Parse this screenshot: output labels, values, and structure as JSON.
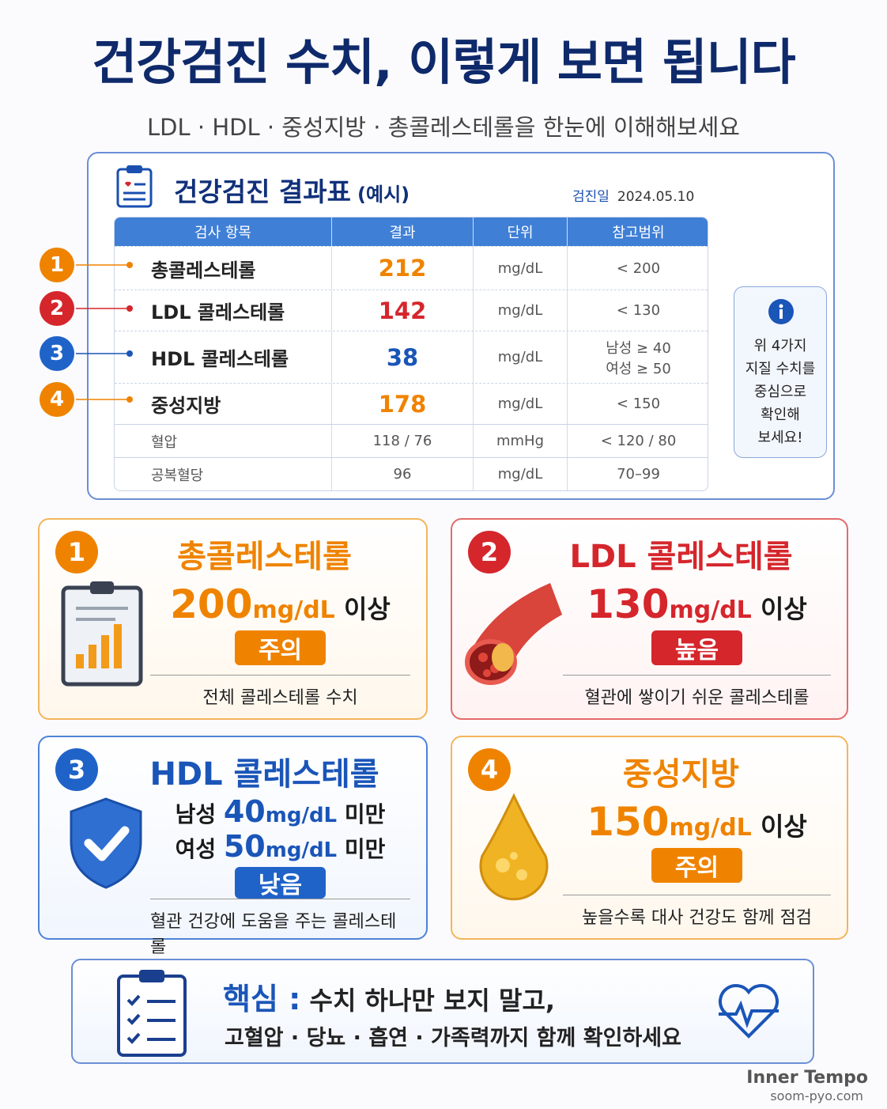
{
  "header": {
    "title": "건강검진 수치, 이렇게 보면 됩니다",
    "subtitle": "LDL · HDL · 중성지방 · 총콜레스테롤을 한눈에 이해해보세요"
  },
  "report": {
    "title": "건강검진 결과표",
    "title_note": "(예시)",
    "date_label": "검진일",
    "date": "2024.05.10",
    "table": {
      "headers": [
        "검사 항목",
        "결과",
        "단위",
        "참고범위"
      ],
      "markers": [
        "1",
        "2",
        "3",
        "4"
      ],
      "rows": [
        [
          "총콜레스테롤",
          "212",
          "mg/dL",
          "< 200"
        ],
        [
          "LDL 콜레스테롤",
          "142",
          "mg/dL",
          "< 130"
        ],
        [
          "HDL 콜레스테롤",
          "38",
          "mg/dL",
          [
            "남성 ≥ 40",
            "여성 ≥ 50"
          ]
        ],
        [
          "중성지방",
          "178",
          "mg/dL",
          "< 150"
        ],
        [
          "혈압",
          "118 / 76",
          "mmHg",
          "< 120 / 80"
        ],
        [
          "공복혈당",
          "96",
          "mg/dL",
          "70–99"
        ]
      ]
    },
    "note": [
      "위 4가지",
      "지질 수치를",
      "중심으로",
      "확인해",
      "보세요!"
    ]
  },
  "cards": [
    {
      "number": "1",
      "title": "총콜레스테롤",
      "lines": [
        {
          "value": "200",
          "unit": "mg/dL",
          "suffix": "이상"
        }
      ],
      "badge": "주의",
      "description": "전체 콜레스테롤 수치"
    },
    {
      "number": "2",
      "title": "LDL 콜레스테롤",
      "lines": [
        {
          "value": "130",
          "unit": "mg/dL",
          "suffix": "이상"
        }
      ],
      "badge": "높음",
      "description": "혈관에 쌓이기 쉬운 콜레스테롤"
    },
    {
      "number": "3",
      "title": "HDL 콜레스테롤",
      "lines": [
        {
          "prefix": "남성",
          "value": "40",
          "unit": "mg/dL",
          "suffix": "미만"
        },
        {
          "prefix": "여성",
          "value": "50",
          "unit": "mg/dL",
          "suffix": "미만"
        }
      ],
      "badge": "낮음",
      "description": "혈관 건강에 도움을 주는 콜레스테롤"
    },
    {
      "number": "4",
      "title": "중성지방",
      "lines": [
        {
          "value": "150",
          "unit": "mg/dL",
          "suffix": "이상"
        }
      ],
      "badge": "주의",
      "description": "높을수록 대사 건강도 함께 점검"
    }
  ],
  "summary": {
    "label": "핵심 :",
    "line1": "수치 하나만 보지 말고,",
    "line2": "고혈압 · 당뇨 · 흡연 · 가족력까지 함께 확인하세요"
  },
  "footer": {
    "brand": "Inner Tempo",
    "site": "soom-pyo.com"
  }
}
